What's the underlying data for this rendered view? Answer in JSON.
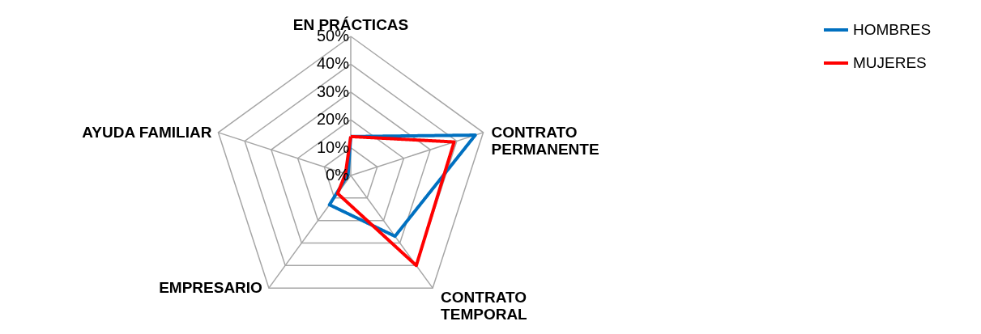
{
  "chart_data": {
    "type": "radar",
    "categories": [
      "EN PRÁCTICAS",
      "CONTRATO\nPERMANENTE",
      "CONTRATO\nTEMPORAL",
      "EMPRESARIO",
      "AYUDA FAMILIAR"
    ],
    "series": [
      {
        "name": "HOMBRES",
        "color": "#0070c0",
        "values": [
          14,
          47,
          27,
          13,
          1
        ]
      },
      {
        "name": "MUJERES",
        "color": "#ff0000",
        "values": [
          14,
          39,
          40,
          8,
          2
        ]
      }
    ],
    "ylim": [
      0,
      50
    ],
    "yticks": [
      {
        "value": 0,
        "label": "0%"
      },
      {
        "value": 10,
        "label": "10%"
      },
      {
        "value": 20,
        "label": "20%"
      },
      {
        "value": 30,
        "label": "30%"
      },
      {
        "value": 40,
        "label": "40%"
      },
      {
        "value": 50,
        "label": "50%"
      }
    ],
    "legend": "top right",
    "grid": true,
    "line_style": "solid",
    "marker": "none"
  }
}
